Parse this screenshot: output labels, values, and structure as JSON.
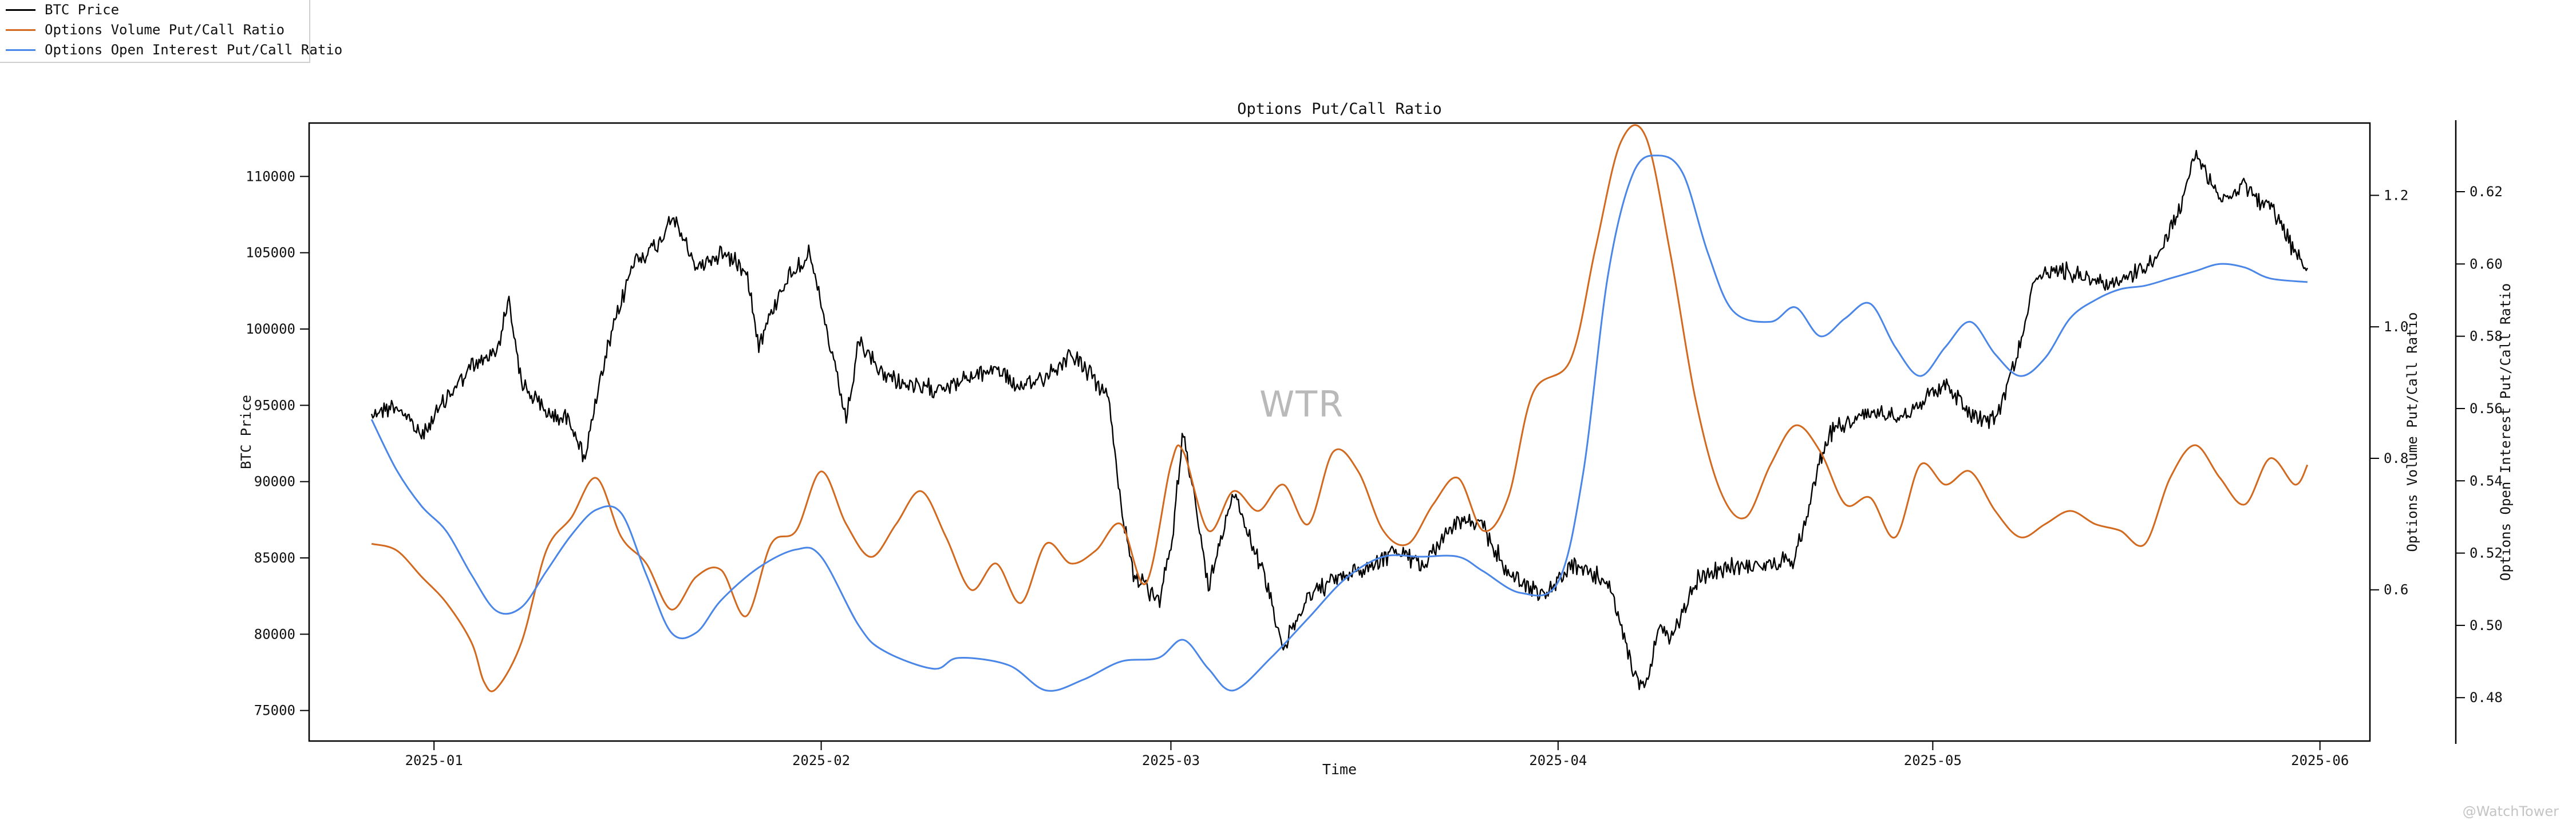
{
  "chart_data": {
    "type": "line",
    "title": "Options Put/Call Ratio",
    "xlabel": "Time",
    "x_ticks": [
      "2025-01",
      "2025-02",
      "2025-03",
      "2025-04",
      "2025-05",
      "2025-06"
    ],
    "x_range": [
      "2024-12-22",
      "2025-06-05"
    ],
    "axes": {
      "left": {
        "label": "BTC Price",
        "range": [
          73000,
          113500
        ],
        "ticks": [
          75000,
          80000,
          85000,
          90000,
          95000,
          100000,
          105000,
          110000
        ]
      },
      "right1": {
        "label": "Options Volume Put/Call Ratio",
        "range": [
          0.37,
          1.31
        ],
        "ticks": [
          0.6,
          0.8,
          1.0,
          1.2
        ]
      },
      "right2": {
        "label": "Options Open Interest Put/Call Ratio",
        "range": [
          0.468,
          0.639
        ],
        "ticks": [
          0.48,
          0.5,
          0.52,
          0.54,
          0.56,
          0.58,
          0.6,
          0.62
        ]
      }
    },
    "legend_position": "top-left",
    "grid": false,
    "series": [
      {
        "name": "BTC Price",
        "color": "#000000",
        "axis": "left",
        "points": [
          [
            "2024-12-27",
            94500
          ],
          [
            "2024-12-29",
            95000
          ],
          [
            "2024-12-31",
            93000
          ],
          [
            "2025-01-02",
            95500
          ],
          [
            "2025-01-04",
            97500
          ],
          [
            "2025-01-06",
            98500
          ],
          [
            "2025-01-07",
            102000
          ],
          [
            "2025-01-08",
            96500
          ],
          [
            "2025-01-10",
            94500
          ],
          [
            "2025-01-12",
            94000
          ],
          [
            "2025-01-13",
            91500
          ],
          [
            "2025-01-15",
            99000
          ],
          [
            "2025-01-17",
            104500
          ],
          [
            "2025-01-19",
            105500
          ],
          [
            "2025-01-20",
            107500
          ],
          [
            "2025-01-22",
            104000
          ],
          [
            "2025-01-24",
            105000
          ],
          [
            "2025-01-26",
            104000
          ],
          [
            "2025-01-27",
            99000
          ],
          [
            "2025-01-29",
            103000
          ],
          [
            "2025-01-31",
            105000
          ],
          [
            "2025-02-01",
            101500
          ],
          [
            "2025-02-03",
            94000
          ],
          [
            "2025-02-04",
            99000
          ],
          [
            "2025-02-06",
            97000
          ],
          [
            "2025-02-09",
            96000
          ],
          [
            "2025-02-12",
            96500
          ],
          [
            "2025-02-15",
            97500
          ],
          [
            "2025-02-17",
            96000
          ],
          [
            "2025-02-20",
            97500
          ],
          [
            "2025-02-21",
            98500
          ],
          [
            "2025-02-24",
            95500
          ],
          [
            "2025-02-25",
            88500
          ],
          [
            "2025-02-26",
            84000
          ],
          [
            "2025-02-28",
            82000
          ],
          [
            "2025-03-01",
            85500
          ],
          [
            "2025-03-02",
            93500
          ],
          [
            "2025-03-04",
            83000
          ],
          [
            "2025-03-06",
            89500
          ],
          [
            "2025-03-09",
            82500
          ],
          [
            "2025-03-10",
            79000
          ],
          [
            "2025-03-12",
            82500
          ],
          [
            "2025-03-14",
            83500
          ],
          [
            "2025-03-17",
            84500
          ],
          [
            "2025-03-19",
            85500
          ],
          [
            "2025-03-21",
            84500
          ],
          [
            "2025-03-24",
            87500
          ],
          [
            "2025-03-26",
            87000
          ],
          [
            "2025-03-28",
            84000
          ],
          [
            "2025-03-31",
            82500
          ],
          [
            "2025-04-02",
            84500
          ],
          [
            "2025-04-05",
            83500
          ],
          [
            "2025-04-07",
            77500
          ],
          [
            "2025-04-08",
            76500
          ],
          [
            "2025-04-09",
            80500
          ],
          [
            "2025-04-10",
            79500
          ],
          [
            "2025-04-12",
            83500
          ],
          [
            "2025-04-15",
            84500
          ],
          [
            "2025-04-18",
            84500
          ],
          [
            "2025-04-20",
            85000
          ],
          [
            "2025-04-22",
            91500
          ],
          [
            "2025-04-23",
            93500
          ],
          [
            "2025-04-26",
            94500
          ],
          [
            "2025-04-29",
            94500
          ],
          [
            "2025-05-02",
            96500
          ],
          [
            "2025-05-04",
            94500
          ],
          [
            "2025-05-06",
            94000
          ],
          [
            "2025-05-08",
            99000
          ],
          [
            "2025-05-09",
            103000
          ],
          [
            "2025-05-11",
            104000
          ],
          [
            "2025-05-13",
            103500
          ],
          [
            "2025-05-15",
            103000
          ],
          [
            "2025-05-17",
            103500
          ],
          [
            "2025-05-19",
            104500
          ],
          [
            "2025-05-21",
            108500
          ],
          [
            "2025-05-22",
            111500
          ],
          [
            "2025-05-24",
            108500
          ],
          [
            "2025-05-26",
            109500
          ],
          [
            "2025-05-27",
            108500
          ],
          [
            "2025-05-28",
            108000
          ],
          [
            "2025-05-30",
            105000
          ],
          [
            "2025-05-31",
            104000
          ]
        ]
      },
      {
        "name": "Options Volume Put/Call Ratio",
        "color": "#d2691e",
        "axis": "right1",
        "points": [
          [
            "2024-12-27",
            0.67
          ],
          [
            "2024-12-29",
            0.66
          ],
          [
            "2024-12-31",
            0.62
          ],
          [
            "2025-01-02",
            0.58
          ],
          [
            "2025-01-04",
            0.52
          ],
          [
            "2025-01-05",
            0.46
          ],
          [
            "2025-01-06",
            0.45
          ],
          [
            "2025-01-08",
            0.52
          ],
          [
            "2025-01-10",
            0.66
          ],
          [
            "2025-01-12",
            0.71
          ],
          [
            "2025-01-14",
            0.77
          ],
          [
            "2025-01-16",
            0.68
          ],
          [
            "2025-01-18",
            0.64
          ],
          [
            "2025-01-20",
            0.57
          ],
          [
            "2025-01-22",
            0.62
          ],
          [
            "2025-01-24",
            0.63
          ],
          [
            "2025-01-26",
            0.56
          ],
          [
            "2025-01-28",
            0.67
          ],
          [
            "2025-01-30",
            0.69
          ],
          [
            "2025-02-01",
            0.78
          ],
          [
            "2025-02-03",
            0.7
          ],
          [
            "2025-02-05",
            0.65
          ],
          [
            "2025-02-07",
            0.7
          ],
          [
            "2025-02-09",
            0.75
          ],
          [
            "2025-02-11",
            0.68
          ],
          [
            "2025-02-13",
            0.6
          ],
          [
            "2025-02-15",
            0.64
          ],
          [
            "2025-02-17",
            0.58
          ],
          [
            "2025-02-19",
            0.67
          ],
          [
            "2025-02-21",
            0.64
          ],
          [
            "2025-02-23",
            0.66
          ],
          [
            "2025-02-25",
            0.7
          ],
          [
            "2025-02-27",
            0.61
          ],
          [
            "2025-03-01",
            0.79
          ],
          [
            "2025-03-02",
            0.81
          ],
          [
            "2025-03-04",
            0.69
          ],
          [
            "2025-03-06",
            0.75
          ],
          [
            "2025-03-08",
            0.72
          ],
          [
            "2025-03-10",
            0.76
          ],
          [
            "2025-03-12",
            0.7
          ],
          [
            "2025-03-14",
            0.81
          ],
          [
            "2025-03-16",
            0.78
          ],
          [
            "2025-03-18",
            0.69
          ],
          [
            "2025-03-20",
            0.67
          ],
          [
            "2025-03-22",
            0.73
          ],
          [
            "2025-03-24",
            0.77
          ],
          [
            "2025-03-26",
            0.69
          ],
          [
            "2025-03-28",
            0.74
          ],
          [
            "2025-03-30",
            0.9
          ],
          [
            "2025-04-02",
            0.95
          ],
          [
            "2025-04-04",
            1.12
          ],
          [
            "2025-04-06",
            1.28
          ],
          [
            "2025-04-08",
            1.29
          ],
          [
            "2025-04-10",
            1.11
          ],
          [
            "2025-04-12",
            0.89
          ],
          [
            "2025-04-14",
            0.75
          ],
          [
            "2025-04-16",
            0.71
          ],
          [
            "2025-04-18",
            0.79
          ],
          [
            "2025-04-20",
            0.85
          ],
          [
            "2025-04-22",
            0.81
          ],
          [
            "2025-04-24",
            0.73
          ],
          [
            "2025-04-26",
            0.74
          ],
          [
            "2025-04-28",
            0.68
          ],
          [
            "2025-04-30",
            0.79
          ],
          [
            "2025-05-02",
            0.76
          ],
          [
            "2025-05-04",
            0.78
          ],
          [
            "2025-05-06",
            0.72
          ],
          [
            "2025-05-08",
            0.68
          ],
          [
            "2025-05-10",
            0.7
          ],
          [
            "2025-05-12",
            0.72
          ],
          [
            "2025-05-14",
            0.7
          ],
          [
            "2025-05-16",
            0.69
          ],
          [
            "2025-05-18",
            0.67
          ],
          [
            "2025-05-20",
            0.77
          ],
          [
            "2025-05-22",
            0.82
          ],
          [
            "2025-05-24",
            0.77
          ],
          [
            "2025-05-26",
            0.73
          ],
          [
            "2025-05-28",
            0.8
          ],
          [
            "2025-05-30",
            0.76
          ],
          [
            "2025-05-31",
            0.79
          ]
        ]
      },
      {
        "name": "Options Open Interest Put/Call Ratio",
        "color": "#4a86e8",
        "axis": "right2",
        "points": [
          [
            "2024-12-27",
            0.557
          ],
          [
            "2024-12-29",
            0.543
          ],
          [
            "2024-12-31",
            0.533
          ],
          [
            "2025-01-02",
            0.526
          ],
          [
            "2025-01-04",
            0.514
          ],
          [
            "2025-01-06",
            0.504
          ],
          [
            "2025-01-08",
            0.505
          ],
          [
            "2025-01-10",
            0.515
          ],
          [
            "2025-01-12",
            0.525
          ],
          [
            "2025-01-14",
            0.532
          ],
          [
            "2025-01-16",
            0.531
          ],
          [
            "2025-01-18",
            0.514
          ],
          [
            "2025-01-20",
            0.498
          ],
          [
            "2025-01-22",
            0.498
          ],
          [
            "2025-01-24",
            0.507
          ],
          [
            "2025-01-27",
            0.516
          ],
          [
            "2025-01-30",
            0.521
          ],
          [
            "2025-02-01",
            0.519
          ],
          [
            "2025-02-04",
            0.5
          ],
          [
            "2025-02-06",
            0.493
          ],
          [
            "2025-02-10",
            0.488
          ],
          [
            "2025-02-12",
            0.491
          ],
          [
            "2025-02-16",
            0.489
          ],
          [
            "2025-02-19",
            0.482
          ],
          [
            "2025-02-22",
            0.485
          ],
          [
            "2025-02-25",
            0.49
          ],
          [
            "2025-02-28",
            0.491
          ],
          [
            "2025-03-02",
            0.496
          ],
          [
            "2025-03-04",
            0.488
          ],
          [
            "2025-03-06",
            0.482
          ],
          [
            "2025-03-09",
            0.491
          ],
          [
            "2025-03-12",
            0.502
          ],
          [
            "2025-03-15",
            0.513
          ],
          [
            "2025-03-18",
            0.519
          ],
          [
            "2025-03-21",
            0.519
          ],
          [
            "2025-03-24",
            0.519
          ],
          [
            "2025-03-26",
            0.515
          ],
          [
            "2025-03-29",
            0.509
          ],
          [
            "2025-04-01",
            0.512
          ],
          [
            "2025-04-03",
            0.542
          ],
          [
            "2025-04-05",
            0.597
          ],
          [
            "2025-04-07",
            0.625
          ],
          [
            "2025-04-09",
            0.63
          ],
          [
            "2025-04-11",
            0.625
          ],
          [
            "2025-04-13",
            0.603
          ],
          [
            "2025-04-15",
            0.587
          ],
          [
            "2025-04-18",
            0.584
          ],
          [
            "2025-04-20",
            0.588
          ],
          [
            "2025-04-22",
            0.58
          ],
          [
            "2025-04-24",
            0.585
          ],
          [
            "2025-04-26",
            0.589
          ],
          [
            "2025-04-28",
            0.577
          ],
          [
            "2025-04-30",
            0.569
          ],
          [
            "2025-05-02",
            0.577
          ],
          [
            "2025-05-04",
            0.584
          ],
          [
            "2025-05-06",
            0.575
          ],
          [
            "2025-05-08",
            0.569
          ],
          [
            "2025-05-10",
            0.574
          ],
          [
            "2025-05-12",
            0.585
          ],
          [
            "2025-05-14",
            0.59
          ],
          [
            "2025-05-16",
            0.593
          ],
          [
            "2025-05-18",
            0.594
          ],
          [
            "2025-05-20",
            0.596
          ],
          [
            "2025-05-22",
            0.598
          ],
          [
            "2025-05-24",
            0.6
          ],
          [
            "2025-05-26",
            0.599
          ],
          [
            "2025-05-28",
            0.596
          ],
          [
            "2025-05-31",
            0.595
          ]
        ]
      }
    ]
  },
  "watermark": "WTR",
  "credit": "@WatchTower"
}
